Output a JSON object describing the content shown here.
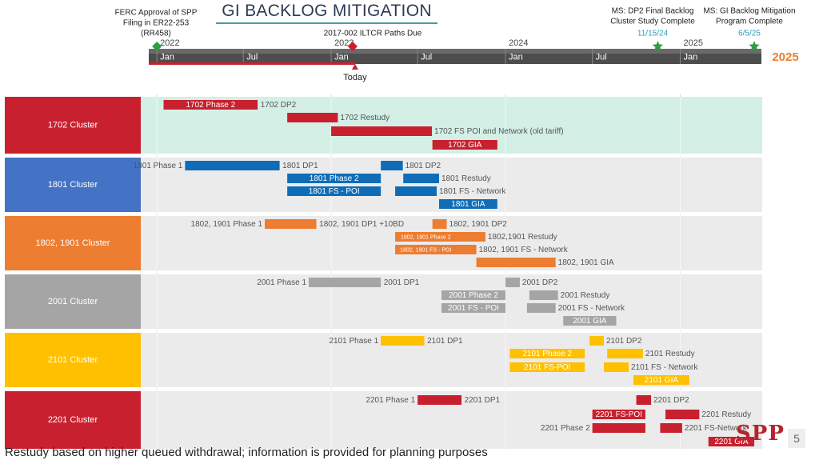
{
  "page": {
    "title": "GI BACKLOG MITIGATION",
    "footer": "Restudy based on higher queued withdrawal; information is provided for planning purposes",
    "page_number": "5",
    "logo_text": "SPP"
  },
  "chart_data": {
    "type": "gantt",
    "x_range": [
      "2021-12-15",
      "2025-06-20"
    ],
    "year_labels": [
      "2022",
      "2023",
      "2024",
      "2025"
    ],
    "end_year_label": "2025",
    "month_ticks": [
      {
        "date": "2022-01-01",
        "label": "Jan"
      },
      {
        "date": "2022-07-01",
        "label": "Jul"
      },
      {
        "date": "2023-01-01",
        "label": "Jan"
      },
      {
        "date": "2023-07-01",
        "label": "Jul"
      },
      {
        "date": "2024-01-01",
        "label": "Jan"
      },
      {
        "date": "2024-07-01",
        "label": "Jul"
      },
      {
        "date": "2025-01-01",
        "label": "Jan"
      }
    ],
    "today": {
      "date": "2023-02-20",
      "label": "Today"
    },
    "milestones": [
      {
        "date": "2022-01-01",
        "label": "FERC Approval of SPP Filing in ER22-253 (RR458)",
        "date_label": "",
        "shape": "diamond",
        "color": "#2e9e3e"
      },
      {
        "date": "2023-02-15",
        "label": "2017-002 ILTCR Paths Due",
        "date_label": "",
        "shape": "diamond",
        "color": "#c8202f"
      },
      {
        "date": "2024-11-15",
        "label": "MS: DP2 Final Backlog Cluster Study Complete",
        "date_label": "11/15/24",
        "shape": "star",
        "color": "#2e9e3e"
      },
      {
        "date": "2025-06-05",
        "label": "MS: GI Backlog Mitigation Program Complete",
        "date_label": "6/5/25",
        "shape": "star",
        "color": "#2e9e3e"
      }
    ],
    "swimlanes": [
      {
        "name": "1702 Cluster",
        "color": "#c8202f",
        "band": "#d3efe6",
        "tasks": [
          {
            "label": "1702 Phase 2",
            "start": "2022-01-15",
            "end": "2022-07-31",
            "color": "#c8202f",
            "label_pos": "inside"
          },
          {
            "label": "1702 DP2",
            "start": "2022-07-31",
            "end": "2022-08-01",
            "color": "#c8202f",
            "label_pos": "right"
          },
          {
            "label": "1702 Restudy",
            "start": "2022-10-01",
            "end": "2023-01-15",
            "color": "#c8202f",
            "label_pos": "right"
          },
          {
            "label": "1702 FS POI and Network (old tariff)",
            "start": "2023-01-01",
            "end": "2023-07-31",
            "color": "#c8202f",
            "label_pos": "right"
          },
          {
            "label": "1702 GIA",
            "start": "2023-08-01",
            "end": "2023-12-15",
            "color": "#c8202f",
            "label_pos": "inside"
          }
        ]
      },
      {
        "name": "1801 Cluster",
        "color": "#4472c4",
        "band": "#ebebeb",
        "tasks": [
          {
            "label": "1801 Phase 1",
            "start": "2022-03-01",
            "end": "2022-09-15",
            "color": "#0f6db7",
            "label_pos": "left"
          },
          {
            "label": "1801 DP1",
            "start": "2022-09-15",
            "end": "2022-09-16",
            "color": "#0f6db7",
            "label_pos": "right"
          },
          {
            "label": "1801 DP2",
            "start": "2023-04-15",
            "end": "2023-05-31",
            "color": "#0f6db7",
            "label_pos": "right"
          },
          {
            "label": "1801 Phase 2",
            "start": "2022-10-01",
            "end": "2023-04-15",
            "color": "#0f6db7",
            "label_pos": "inside"
          },
          {
            "label": "1801 Restudy",
            "start": "2023-06-01",
            "end": "2023-08-15",
            "color": "#0f6db7",
            "label_pos": "right"
          },
          {
            "label": "1801 FS - POI",
            "start": "2022-10-01",
            "end": "2023-04-15",
            "color": "#0f6db7",
            "label_pos": "inside"
          },
          {
            "label": "1801 FS - Network",
            "start": "2023-05-15",
            "end": "2023-08-10",
            "color": "#0f6db7",
            "label_pos": "right"
          },
          {
            "label": "1801 GIA",
            "start": "2023-08-15",
            "end": "2023-12-15",
            "color": "#0f6db7",
            "label_pos": "inside"
          }
        ]
      },
      {
        "name": "1802, 1901 Cluster",
        "color": "#ed7d31",
        "band": "#ebebeb",
        "tasks": [
          {
            "label": "1802, 1901 Phase 1",
            "start": "2022-08-15",
            "end": "2022-12-01",
            "color": "#ed7d31",
            "label_pos": "left"
          },
          {
            "label": "1802, 1901 DP1 +10BD",
            "start": "2022-12-01",
            "end": "2022-12-02",
            "color": "#ed7d31",
            "label_pos": "right"
          },
          {
            "label": "1802, 1901 DP2",
            "start": "2023-08-01",
            "end": "2023-08-31",
            "color": "#ed7d31",
            "label_pos": "right"
          },
          {
            "label": "1802, 1901 Phase 2",
            "start": "2023-05-15",
            "end": "2023-09-20",
            "color": "#ed7d31",
            "label_pos": "inside_small"
          },
          {
            "label": "1802,1901 Restudy",
            "start": "2023-09-20",
            "end": "2023-11-20",
            "color": "#ed7d31",
            "label_pos": "right"
          },
          {
            "label": "1802, 1901 FS - POI",
            "start": "2023-05-15",
            "end": "2023-09-20",
            "color": "#ed7d31",
            "label_pos": "inside_small"
          },
          {
            "label": "1802, 1901 FS - Network",
            "start": "2023-09-15",
            "end": "2023-11-01",
            "color": "#ed7d31",
            "label_pos": "right"
          },
          {
            "label": "1802, 1901 GIA",
            "start": "2023-11-01",
            "end": "2024-04-15",
            "color": "#ed7d31",
            "label_pos": "right"
          }
        ]
      },
      {
        "name": "2001 Cluster",
        "color": "#a5a5a5",
        "band": "#ebebeb",
        "tasks": [
          {
            "label": "2001 Phase 1",
            "start": "2022-11-15",
            "end": "2023-04-15",
            "color": "#a5a5a5",
            "label_pos": "left"
          },
          {
            "label": "2001 DP1",
            "start": "2023-04-15",
            "end": "2023-04-16",
            "color": "#a5a5a5",
            "label_pos": "right"
          },
          {
            "label": "2001 DP2",
            "start": "2024-01-01",
            "end": "2024-01-31",
            "color": "#a5a5a5",
            "label_pos": "right"
          },
          {
            "label": "2001 Phase 2",
            "start": "2023-08-20",
            "end": "2024-01-01",
            "color": "#a5a5a5",
            "label_pos": "inside"
          },
          {
            "label": "2001 Restudy",
            "start": "2024-02-20",
            "end": "2024-04-20",
            "color": "#a5a5a5",
            "label_pos": "right"
          },
          {
            "label": "2001 FS - POI",
            "start": "2023-08-20",
            "end": "2024-01-01",
            "color": "#a5a5a5",
            "label_pos": "inside"
          },
          {
            "label": "2001 FS - Network",
            "start": "2024-02-15",
            "end": "2024-04-15",
            "color": "#a5a5a5",
            "label_pos": "right"
          },
          {
            "label": "2001 GIA",
            "start": "2024-05-01",
            "end": "2024-08-20",
            "color": "#a5a5a5",
            "label_pos": "inside"
          }
        ]
      },
      {
        "name": "2101 Cluster",
        "color": "#ffc000",
        "band": "#ebebeb",
        "tasks": [
          {
            "label": "2101 Phase 1",
            "start": "2023-04-15",
            "end": "2023-07-15",
            "color": "#ffc000",
            "label_pos": "left"
          },
          {
            "label": "2101 DP1",
            "start": "2023-07-15",
            "end": "2023-07-16",
            "color": "#ffc000",
            "label_pos": "right"
          },
          {
            "label": "2101 DP2",
            "start": "2024-06-25",
            "end": "2024-07-25",
            "color": "#ffc000",
            "label_pos": "right"
          },
          {
            "label": "2101 Phase 2",
            "start": "2024-01-10",
            "end": "2024-06-15",
            "color": "#ffc000",
            "label_pos": "inside"
          },
          {
            "label": "2101 Restudy",
            "start": "2024-08-01",
            "end": "2024-10-15",
            "color": "#ffc000",
            "label_pos": "right"
          },
          {
            "label": "2101 FS-POI",
            "start": "2024-01-10",
            "end": "2024-06-15",
            "color": "#ffc000",
            "label_pos": "inside"
          },
          {
            "label": "2101 FS - Network",
            "start": "2024-07-25",
            "end": "2024-09-15",
            "color": "#ffc000",
            "label_pos": "right"
          },
          {
            "label": "2101 GIA",
            "start": "2024-09-25",
            "end": "2025-01-20",
            "color": "#ffc000",
            "label_pos": "inside"
          }
        ]
      },
      {
        "name": "2201 Cluster",
        "color": "#c8202f",
        "band": "#ebebeb",
        "tasks": [
          {
            "label": "2201 Phase 1",
            "start": "2023-07-01",
            "end": "2023-10-01",
            "color": "#c8202f",
            "label_pos": "left"
          },
          {
            "label": "2201 DP1",
            "start": "2023-10-01",
            "end": "2023-10-02",
            "color": "#c8202f",
            "label_pos": "right"
          },
          {
            "label": "2201 DP2",
            "start": "2024-10-01",
            "end": "2024-11-01",
            "color": "#c8202f",
            "label_pos": "right"
          },
          {
            "label": "2201 FS-POI",
            "start": "2024-07-01",
            "end": "2024-10-20",
            "color": "#c8202f",
            "label_pos": "inside"
          },
          {
            "label": "2201 Restudy",
            "start": "2024-12-01",
            "end": "2025-02-10",
            "color": "#c8202f",
            "label_pos": "right"
          },
          {
            "label": "2201 Phase 2",
            "start": "2024-07-01",
            "end": "2024-10-20",
            "color": "#c8202f",
            "label_pos": "left"
          },
          {
            "label": "2201 FS-Network",
            "start": "2024-11-20",
            "end": "2025-01-05",
            "color": "#c8202f",
            "label_pos": "right"
          },
          {
            "label": "2201 GIA",
            "start": "2025-03-01",
            "end": "2025-06-05",
            "color": "#c8202f",
            "label_pos": "inside"
          }
        ]
      }
    ]
  }
}
